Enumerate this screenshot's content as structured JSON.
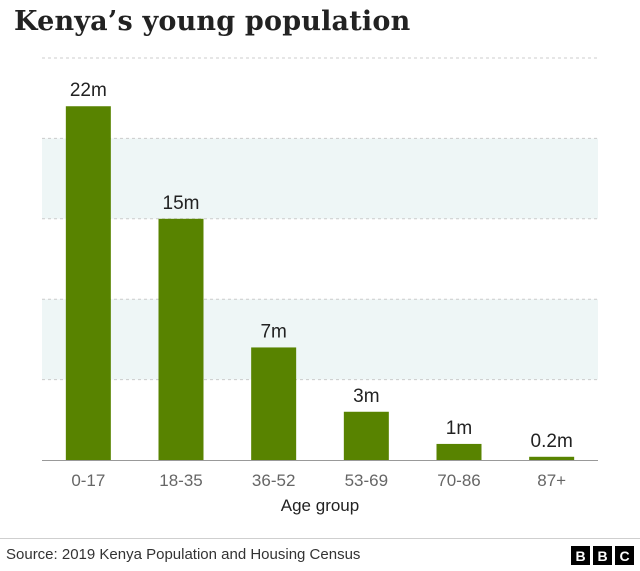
{
  "title": "Kenya’s young population",
  "source": "Source: 2019 Kenya Population and Housing Census",
  "logo": [
    "B",
    "B",
    "C"
  ],
  "colors": {
    "bar": "#588300",
    "band": "#eef6f6",
    "grid": "#cccccc",
    "axis": "#999999"
  },
  "chart_data": {
    "type": "bar",
    "categories": [
      "0-17",
      "18-35",
      "36-52",
      "53-69",
      "70-86",
      "87+"
    ],
    "values": [
      22,
      15,
      7,
      3,
      1,
      0.2
    ],
    "data_labels": [
      "22m",
      "15m",
      "7m",
      "3m",
      "1m",
      "0.2m"
    ],
    "xlabel": "Age group",
    "ylabel": "",
    "ylim": [
      0,
      25
    ],
    "grid": true
  }
}
